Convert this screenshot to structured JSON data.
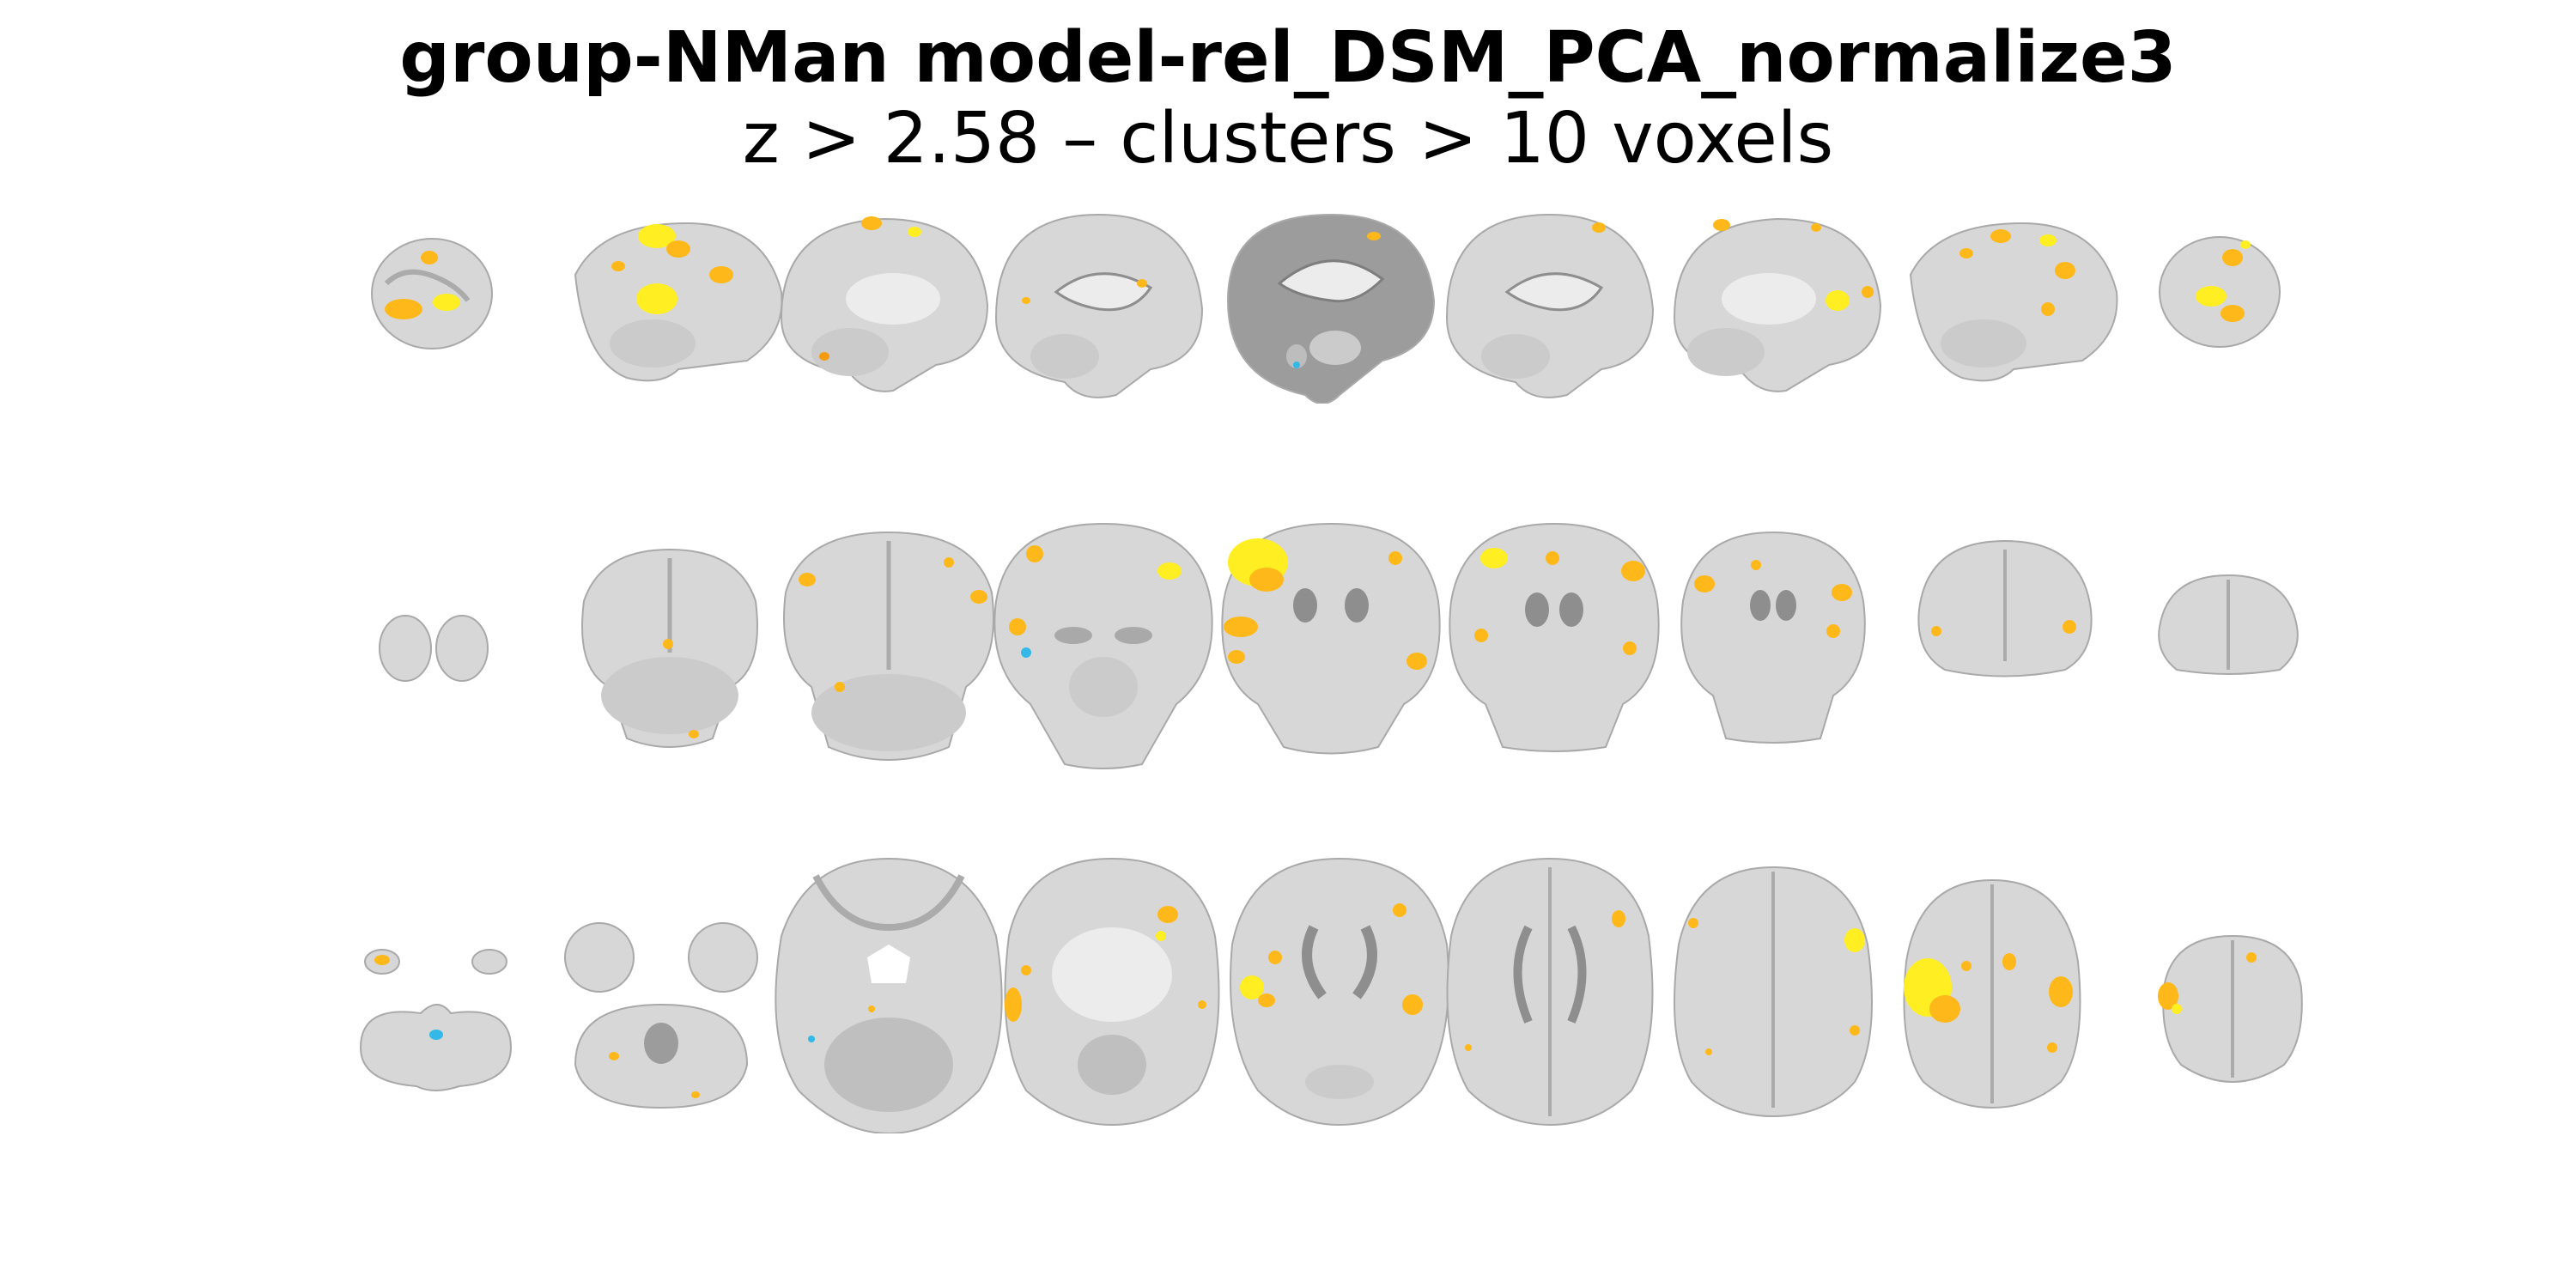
{
  "figure": {
    "title_line1": "group-NMan model-rel_DSM_PCA_normalize3",
    "title_line2": "z > 2.58 – clusters > 10 voxels",
    "colors": {
      "brain": "#d7d7d7",
      "brain_outline": "#a9a9a9",
      "sulcus": "#ababab",
      "white_matter": "#ececec",
      "ventricle": "#8e8e8e",
      "activation_pos_hi": "#ffee22",
      "activation_pos_mid": "#ffb81a",
      "activation_pos_lo": "#f59b10",
      "activation_neg": "#33b8e8"
    }
  },
  "rows": [
    {
      "view": "sagittal",
      "slices": 9
    },
    {
      "view": "coronal",
      "slices": 9
    },
    {
      "view": "axial",
      "slices": 9
    }
  ]
}
